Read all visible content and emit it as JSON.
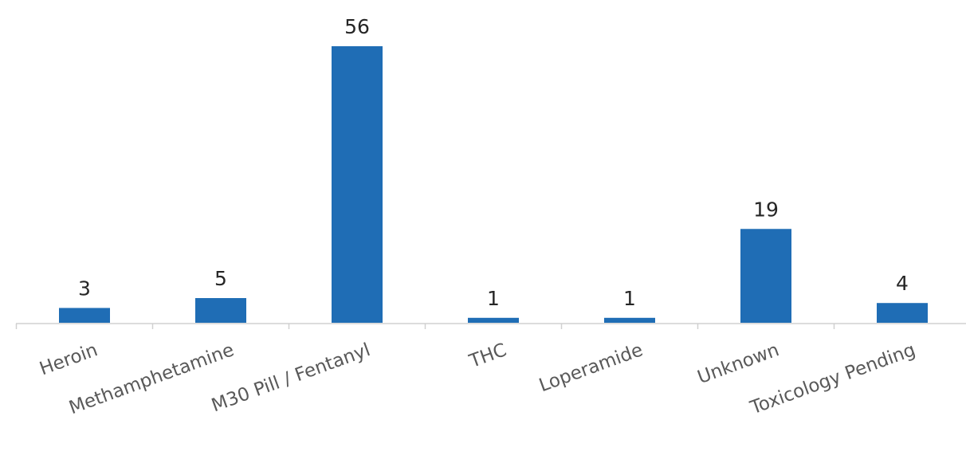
{
  "chart_data": {
    "type": "bar",
    "title": "",
    "xlabel": "",
    "ylabel": "",
    "categories": [
      "Heroin",
      "Methamphetamine",
      "M30 Pill / Fentanyl",
      "THC",
      "Loperamide",
      "Unknown",
      "Toxicology Pending"
    ],
    "values": [
      3,
      5,
      56,
      1,
      1,
      19,
      4
    ],
    "ylim": [
      0,
      56
    ],
    "bar_color": "#1F6DB5",
    "axis_color": "#D0D0D0",
    "grid": false,
    "legend": "none",
    "data_labels": true
  }
}
